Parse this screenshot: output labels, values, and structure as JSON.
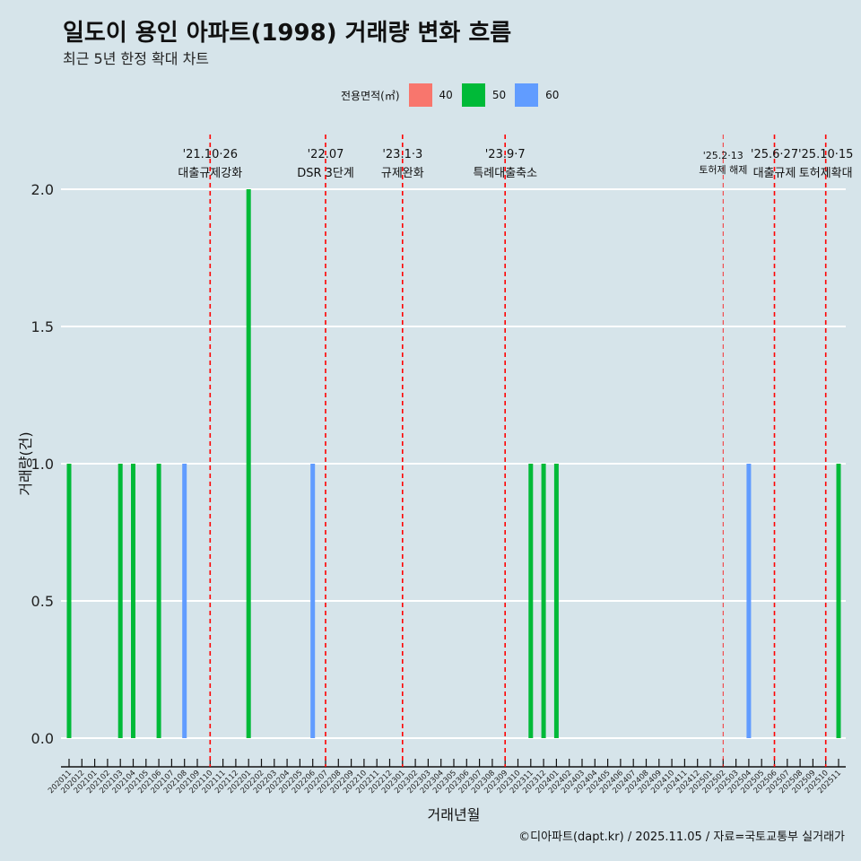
{
  "chart_data": {
    "type": "bar",
    "title": "일도이 용인 아파트(1998) 거래량 변화 흐름",
    "subtitle": "최근 5년 한정 확대 차트",
    "xlabel": "거래년월",
    "ylabel": "거래량(건)",
    "ylim": [
      0,
      2
    ],
    "yticks": [
      "0.0",
      "0.5",
      "1.0",
      "1.5",
      "2.0"
    ],
    "grid": true,
    "legend": {
      "title": "전용면적(㎡)",
      "placement": "top",
      "entries": [
        {
          "label": "40",
          "color": "#f8766d"
        },
        {
          "label": "50",
          "color": "#00ba38"
        },
        {
          "label": "60",
          "color": "#619cff"
        }
      ]
    },
    "categories": [
      "202011",
      "202012",
      "202101",
      "202102",
      "202103",
      "202104",
      "202105",
      "202106",
      "202107",
      "202108",
      "202109",
      "202110",
      "202111",
      "202112",
      "202201",
      "202202",
      "202203",
      "202204",
      "202205",
      "202206",
      "202207",
      "202208",
      "202209",
      "202210",
      "202211",
      "202212",
      "202301",
      "202302",
      "202303",
      "202304",
      "202305",
      "202306",
      "202307",
      "202308",
      "202309",
      "202310",
      "202311",
      "202312",
      "202401",
      "202402",
      "202403",
      "202404",
      "202405",
      "202406",
      "202407",
      "202408",
      "202409",
      "202410",
      "202411",
      "202412",
      "202501",
      "202502",
      "202503",
      "202504",
      "202505",
      "202506",
      "202507",
      "202508",
      "202509",
      "202510",
      "202511"
    ],
    "bars": [
      {
        "month": "202011",
        "area": "50",
        "value": 1
      },
      {
        "month": "202103",
        "area": "50",
        "value": 1
      },
      {
        "month": "202104",
        "area": "50",
        "value": 1
      },
      {
        "month": "202106",
        "area": "50",
        "value": 1
      },
      {
        "month": "202108",
        "area": "60",
        "value": 1
      },
      {
        "month": "202201",
        "area": "50",
        "value": 2
      },
      {
        "month": "202206",
        "area": "60",
        "value": 1
      },
      {
        "month": "202311",
        "area": "50",
        "value": 1
      },
      {
        "month": "202312",
        "area": "50",
        "value": 1
      },
      {
        "month": "202401",
        "area": "50",
        "value": 1
      },
      {
        "month": "202504",
        "area": "60",
        "value": 1
      },
      {
        "month": "202511",
        "area": "50",
        "value": 1
      }
    ],
    "events": [
      {
        "month": "202110",
        "date": "'21.10·26",
        "label": "대출규제강화",
        "minor": false
      },
      {
        "month": "202207",
        "date": "'22.07",
        "label": "DSR 3단계",
        "minor": false
      },
      {
        "month": "202301",
        "date": "'23.1·3",
        "label": "규제완화",
        "minor": false
      },
      {
        "month": "202309",
        "date": "'23.9·7",
        "label": "특례대출축소",
        "minor": false
      },
      {
        "month": "202502",
        "date": "'25.2·13",
        "label": "토허제 해제",
        "minor": true
      },
      {
        "month": "202506",
        "date": "'25.6·27",
        "label": "대출규제",
        "minor": false
      },
      {
        "month": "202510",
        "date": "'25.10·15",
        "label": "토허제확대",
        "minor": false
      }
    ],
    "caption": "©디아파트(dapt.kr) / 2025.11.05 / 자료=국토교통부 실거래가"
  }
}
